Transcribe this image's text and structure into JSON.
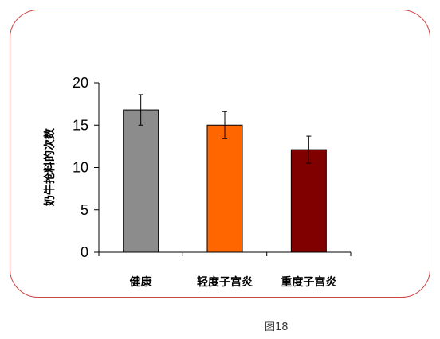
{
  "chart_data": {
    "type": "bar",
    "categories": [
      "健康",
      "轻度子宫炎",
      "重度子宫炎"
    ],
    "values": [
      16.8,
      15.0,
      12.1
    ],
    "error_bars": [
      1.8,
      1.6,
      1.6
    ],
    "colors": [
      "#8c8c8c",
      "#ff6600",
      "#800000"
    ],
    "ylabel": "奶牛抢料的次数",
    "xlabel": "",
    "ylim": [
      0,
      20
    ],
    "yticks": [
      0,
      5,
      10,
      15,
      20
    ],
    "grid": false,
    "legend": "none"
  },
  "caption": "图18",
  "frame_border_color": "#cc4444"
}
